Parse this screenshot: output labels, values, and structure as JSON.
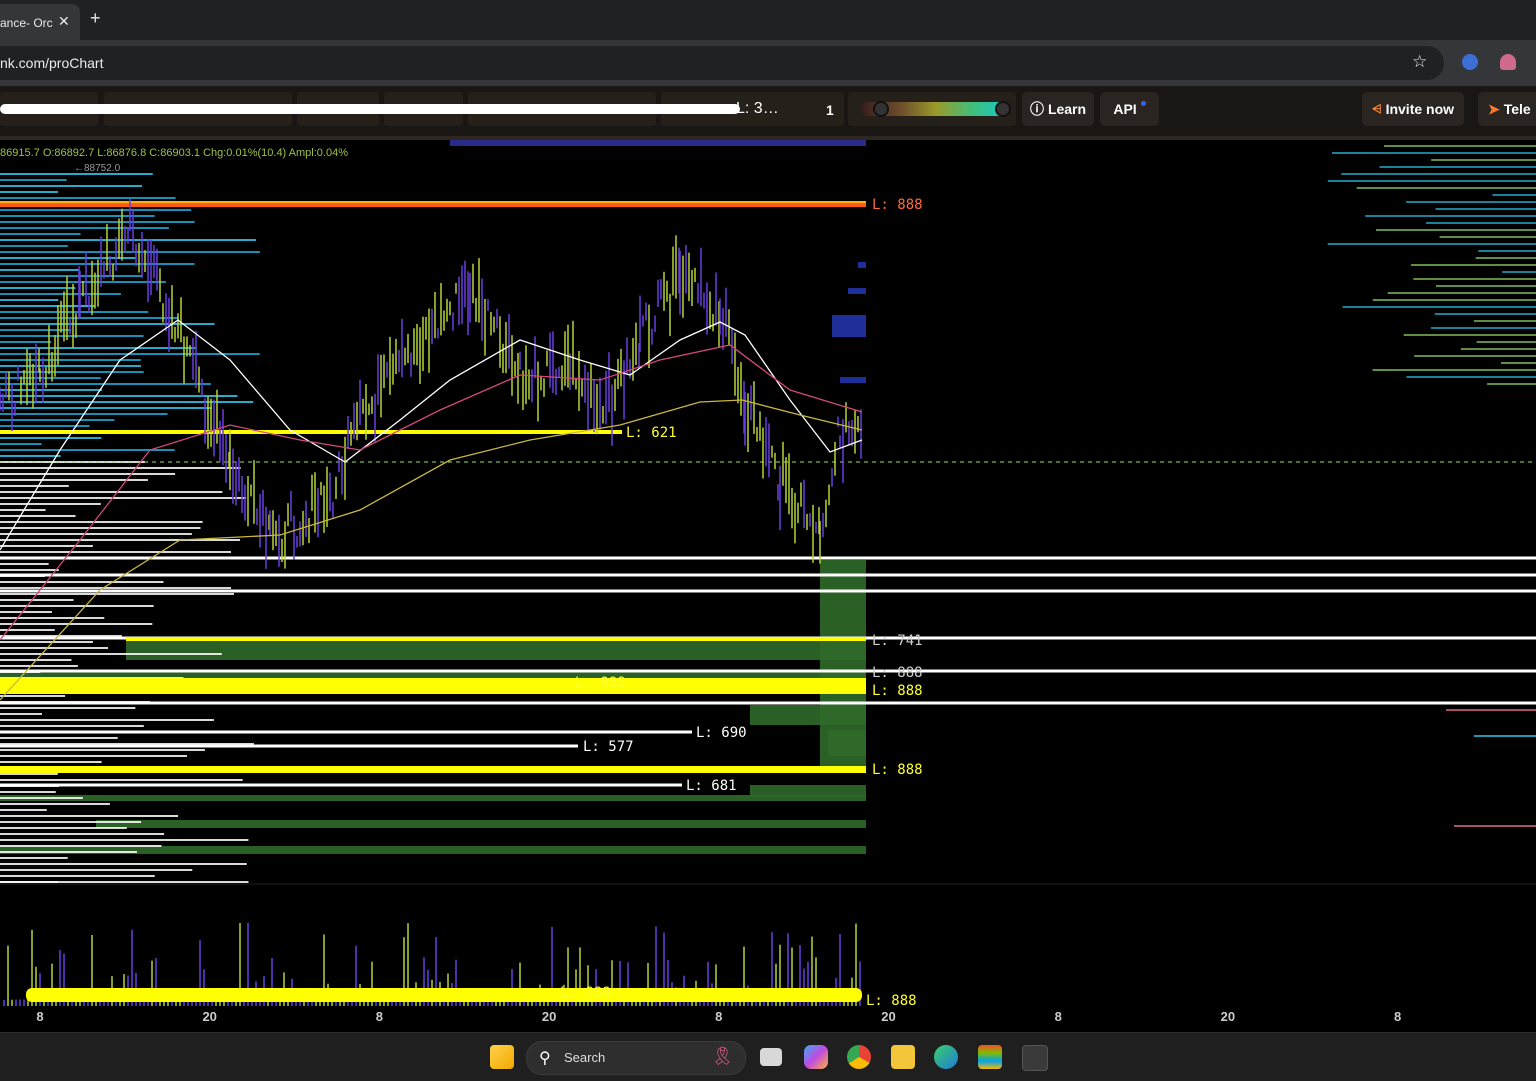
{
  "browser": {
    "tab_title": "ance- Orc",
    "tab_close": "✕",
    "new_tab": "+",
    "url": "nk.com/proChart",
    "star_icon": "☆"
  },
  "toolbar": {
    "scrambled_label": "L: 3…",
    "interval": "1",
    "slider_left_pct": 0.13,
    "slider_right_pct": 0.95,
    "learn_label": "Learn",
    "api_label": "API",
    "invite_label": "Invite now",
    "tele_label": "Tele"
  },
  "chart": {
    "ohlc": "86915.7  O:86892.7  L:86876.8  C:86903.1  Chg:0.01%(10.4)  Ampl:0.04%",
    "low_marker": "←88752.0",
    "level_labels": [
      {
        "text": "L: 888",
        "color": "#ff6a3a"
      },
      {
        "text": "L: 621",
        "color": "#ffff30"
      },
      {
        "text": "L: 741",
        "color": "#cccccc"
      },
      {
        "text": "L: 888",
        "color": "#cccccc"
      },
      {
        "text": "L: 888",
        "color": "#ffff30"
      },
      {
        "text": "L: 888",
        "color": "#ffff30"
      },
      {
        "text": "L: 690",
        "color": "#ffffff"
      },
      {
        "text": "L: 577",
        "color": "#ffffff"
      },
      {
        "text": "L: 888",
        "color": "#ffff30"
      },
      {
        "text": "L: 681",
        "color": "#ffffff"
      },
      {
        "text": "L: 888",
        "color": "#ffff30"
      },
      {
        "text": "L: 888",
        "color": "#ffff30"
      }
    ],
    "x_ticks": [
      "8",
      "20",
      "8",
      "20",
      "8",
      "20",
      "8",
      "20",
      "8"
    ],
    "colors": {
      "up": "#b5d334",
      "down": "#6a3de0",
      "ema_white": "#ffffff",
      "ema_pink": "#d04a7a",
      "ema_gold": "#c9b642",
      "zone_green": "#2f6a2a",
      "level_yellow": "#ffff00",
      "level_orange": "#ff5a1a",
      "ohlc_text": "#a0c040"
    }
  },
  "taskbar": {
    "search_placeholder": "Search",
    "icons": [
      "windows-start-icon",
      "task-view-icon",
      "copilot-icon",
      "chrome-icon",
      "file-explorer-icon",
      "edge-icon",
      "store-icon",
      "vscode-icon"
    ]
  }
}
